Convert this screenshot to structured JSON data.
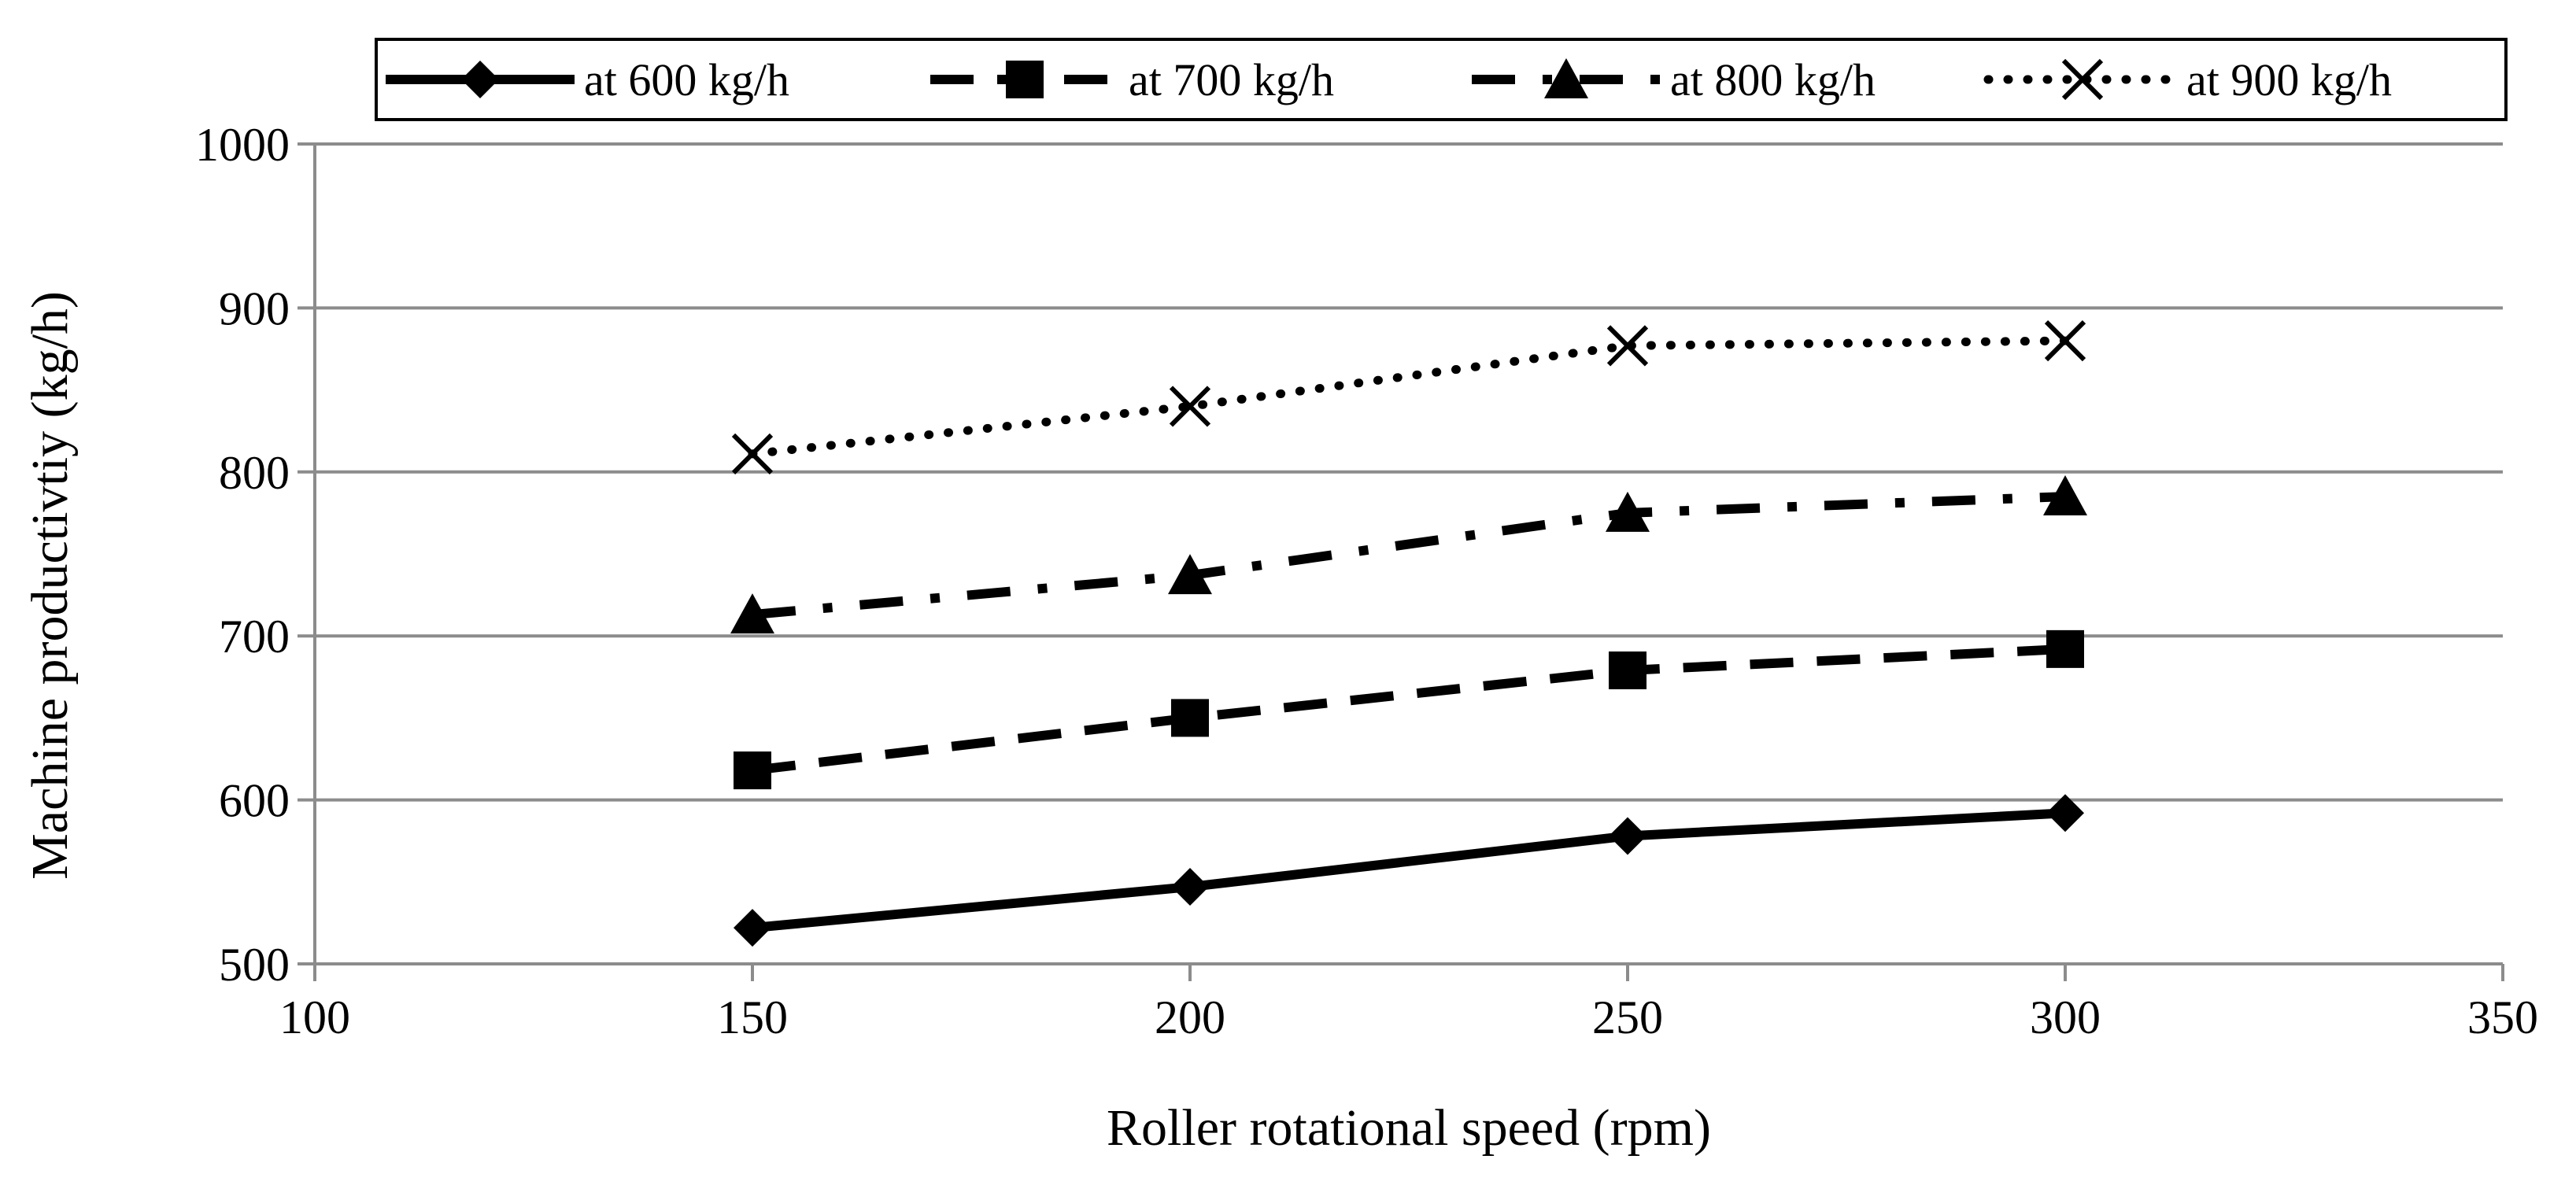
{
  "chart_data": {
    "type": "line",
    "title": "",
    "xlabel": "Roller rotational speed (rpm)",
    "ylabel": "Machine productivtiy (kg/h)",
    "xlim": [
      100,
      350
    ],
    "ylim": [
      500,
      1000
    ],
    "x_ticks": [
      100,
      150,
      200,
      250,
      300,
      350
    ],
    "y_ticks": [
      500,
      600,
      700,
      800,
      900,
      1000
    ],
    "grid": "horizontal",
    "legend_position": "top",
    "x": [
      150,
      200,
      250,
      300
    ],
    "series": [
      {
        "name": "at 600 kg/h",
        "values": [
          522,
          547,
          578,
          592
        ],
        "line_style": "solid",
        "marker": "diamond"
      },
      {
        "name": "at 700 kg/h",
        "values": [
          618,
          650,
          679,
          692
        ],
        "line_style": "dashed",
        "marker": "square"
      },
      {
        "name": "at 800 kg/h",
        "values": [
          713,
          737,
          775,
          785
        ],
        "line_style": "dash-dot",
        "marker": "triangle"
      },
      {
        "name": "at 900 kg/h",
        "values": [
          811,
          840,
          877,
          880
        ],
        "line_style": "dotted",
        "marker": "x"
      }
    ],
    "colors": {
      "line": "#000000",
      "grid": "#8c8c8c",
      "axis": "#8c8c8c"
    }
  }
}
